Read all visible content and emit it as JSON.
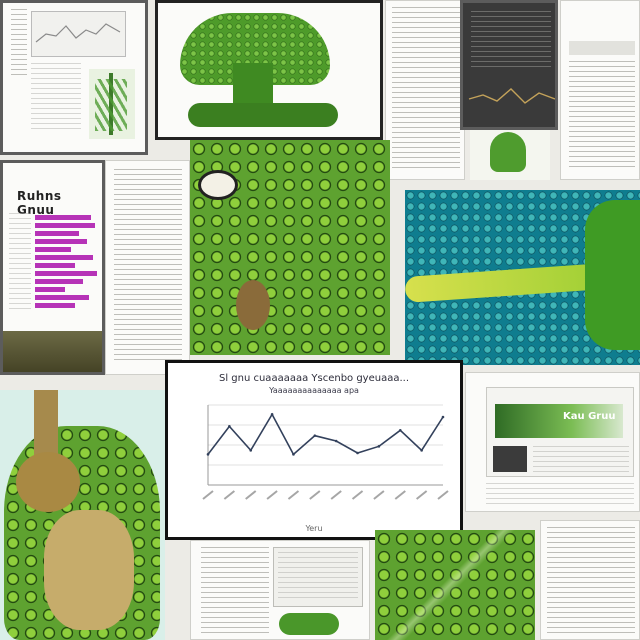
{
  "collage": {
    "chart_panel": {
      "title": "Sl  gnu  cuaaaaaaa  Yscenbo  gyeuaaa...",
      "subtitle": "Yaaaaaaaaaaaaaa  apa",
      "x_label": "Yeru"
    },
    "bar_panel": {
      "title": "Ruhns Gnuu"
    },
    "green_banner_panel": {
      "title": "Kau Gruu"
    }
  },
  "chart_data": {
    "type": "line",
    "title": "Sl  gnu  cuaaaaaaa  Yscenbo  gyeuaaa...",
    "xlabel": "Yeru",
    "ylabel": "",
    "x": [
      1,
      2,
      3,
      4,
      5,
      6,
      7,
      8,
      9,
      10,
      11,
      12
    ],
    "series": [
      {
        "values": [
          2.3,
          4.4,
          2.6,
          5.3,
          2.3,
          3.7,
          3.3,
          2.4,
          2.9,
          4.1,
          2.6,
          5.1
        ]
      }
    ],
    "ylim": [
      0,
      6
    ],
    "grid": true,
    "colors": {
      "line": "#33415c"
    }
  }
}
